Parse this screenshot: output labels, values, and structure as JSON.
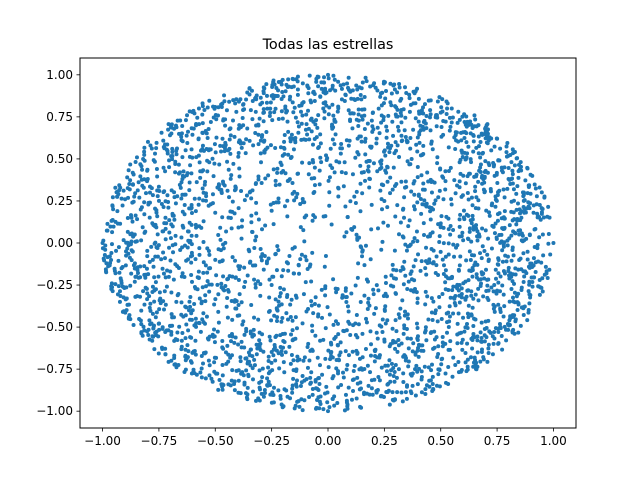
{
  "chart_data": {
    "type": "scatter",
    "title": "Todas las estrellas",
    "xlabel": "",
    "ylabel": "",
    "xlim": [
      -1.1,
      1.1
    ],
    "ylim": [
      -1.1,
      1.1
    ],
    "x_ticks": [
      -1.0,
      -0.75,
      -0.5,
      -0.25,
      0.0,
      0.25,
      0.5,
      0.75,
      1.0
    ],
    "x_tick_labels": [
      "−1.00",
      "−0.75",
      "−0.50",
      "−0.25",
      "0.00",
      "0.25",
      "0.50",
      "0.75",
      "1.00"
    ],
    "y_ticks": [
      1.0,
      0.75,
      0.5,
      0.25,
      0.0,
      -0.25,
      -0.5,
      -0.75,
      -1.0
    ],
    "y_tick_labels": [
      "1.00",
      "0.75",
      "0.50",
      "0.25",
      "0.00",
      "−0.25",
      "−0.50",
      "−0.75",
      "−1.00"
    ],
    "grid": false,
    "color": "#1f77b4",
    "series": [
      {
        "x": [
          -1.0,
          0.0,
          1.0,
          0.0,
          0.7071,
          -0.7071,
          0.7071,
          -0.7071,
          0.25,
          -0.25,
          0.5,
          -0.5,
          0.3,
          -0.3,
          0.6,
          -0.6,
          0.85,
          -0.85,
          0.12,
          -0.12
        ],
        "y": [
          0.0,
          1.0,
          0.0,
          -1.0,
          0.7071,
          0.7071,
          -0.7071,
          -0.7071,
          0.25,
          -0.25,
          0.1,
          -0.1,
          0.6,
          -0.6,
          0.4,
          -0.4,
          0.2,
          -0.2,
          0.85,
          -0.85
        ]
      }
    ],
    "n_points": 3000,
    "distribution": "uniform on unit disk, denser near the boundary"
  }
}
